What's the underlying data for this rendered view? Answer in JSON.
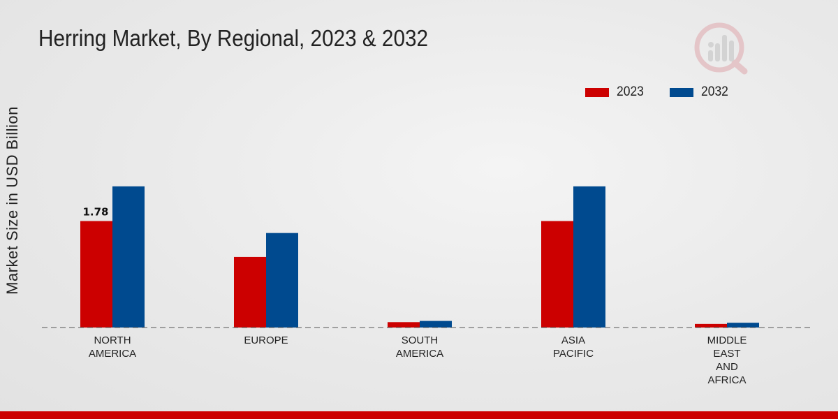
{
  "chart_data": {
    "type": "bar",
    "title": "Herring Market, By Regional, 2023 & 2032",
    "xlabel": "",
    "ylabel": "Market Size in USD Billion",
    "categories": [
      [
        "NORTH",
        "AMERICA"
      ],
      [
        "EUROPE"
      ],
      [
        "SOUTH",
        "AMERICA"
      ],
      [
        "ASIA",
        "PACIFIC"
      ],
      [
        "MIDDLE",
        "EAST",
        "AND",
        "AFRICA"
      ]
    ],
    "series": [
      {
        "name": "2023",
        "color": "#cc0000",
        "values": [
          1.78,
          1.18,
          0.09,
          1.78,
          0.06
        ]
      },
      {
        "name": "2032",
        "color": "#004a8f",
        "values": [
          2.36,
          1.58,
          0.11,
          2.36,
          0.08
        ]
      }
    ],
    "data_labels": [
      {
        "series": 0,
        "index": 0,
        "text": "1.78"
      }
    ],
    "ylim": [
      0,
      4.6
    ],
    "grid": false,
    "legend": "top-right"
  }
}
